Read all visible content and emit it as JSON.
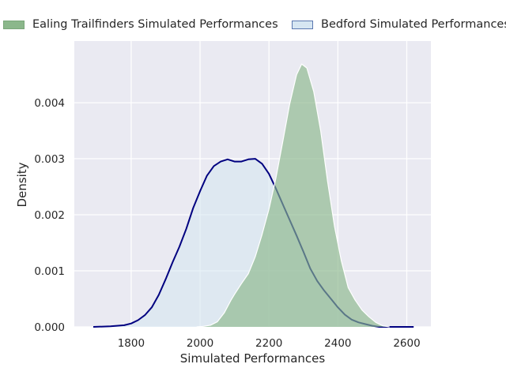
{
  "chart_data": {
    "type": "area",
    "title": "",
    "xlabel": "Simulated Performances",
    "ylabel": "Density",
    "xlim": [
      1635,
      2670
    ],
    "ylim": [
      0,
      0.0051
    ],
    "grid": true,
    "legend_position": "top",
    "x_ticks": [
      "1800",
      "2000",
      "2200",
      "2400",
      "2600"
    ],
    "y_ticks": [
      "0.000",
      "0.001",
      "0.002",
      "0.003",
      "0.004"
    ],
    "series": [
      {
        "name": "Ealing Trailfinders Simulated Performances",
        "fill": "#8bb78b",
        "fill_opacity": 0.65,
        "outline": "#ffffff",
        "points": [
          [
            1990,
            0.0
          ],
          [
            2010,
            1e-05
          ],
          [
            2030,
            3e-05
          ],
          [
            2050,
            9e-05
          ],
          [
            2070,
            0.00025
          ],
          [
            2090,
            0.00048
          ],
          [
            2100,
            0.00058
          ],
          [
            2120,
            0.00077
          ],
          [
            2140,
            0.00095
          ],
          [
            2160,
            0.00125
          ],
          [
            2180,
            0.00165
          ],
          [
            2200,
            0.0021
          ],
          [
            2220,
            0.00265
          ],
          [
            2240,
            0.0033
          ],
          [
            2260,
            0.00397
          ],
          [
            2280,
            0.0045
          ],
          [
            2295,
            0.00469
          ],
          [
            2310,
            0.00462
          ],
          [
            2330,
            0.0042
          ],
          [
            2350,
            0.0035
          ],
          [
            2370,
            0.0026
          ],
          [
            2390,
            0.0018
          ],
          [
            2410,
            0.00118
          ],
          [
            2430,
            0.0007
          ],
          [
            2450,
            0.00048
          ],
          [
            2470,
            0.0003
          ],
          [
            2490,
            0.00018
          ],
          [
            2510,
            8e-05
          ],
          [
            2530,
            2e-05
          ],
          [
            2550,
            0.0
          ]
        ]
      },
      {
        "name": "Bedford Simulated Performances",
        "fill": "#d3e5f1",
        "fill_opacity": 0.55,
        "outline": "#000080",
        "points": [
          [
            1690,
            0.0
          ],
          [
            1740,
            1e-05
          ],
          [
            1780,
            3e-05
          ],
          [
            1800,
            6e-05
          ],
          [
            1820,
            0.00012
          ],
          [
            1840,
            0.00021
          ],
          [
            1860,
            0.00035
          ],
          [
            1880,
            0.00057
          ],
          [
            1900,
            0.00085
          ],
          [
            1920,
            0.00115
          ],
          [
            1940,
            0.00143
          ],
          [
            1960,
            0.00175
          ],
          [
            1980,
            0.00212
          ],
          [
            2000,
            0.00242
          ],
          [
            2020,
            0.0027
          ],
          [
            2040,
            0.00287
          ],
          [
            2060,
            0.00295
          ],
          [
            2080,
            0.00299
          ],
          [
            2100,
            0.00295
          ],
          [
            2120,
            0.00295
          ],
          [
            2140,
            0.00299
          ],
          [
            2160,
            0.003
          ],
          [
            2180,
            0.00291
          ],
          [
            2200,
            0.00273
          ],
          [
            2220,
            0.00247
          ],
          [
            2240,
            0.00219
          ],
          [
            2260,
            0.00191
          ],
          [
            2280,
            0.00163
          ],
          [
            2300,
            0.00134
          ],
          [
            2320,
            0.00104
          ],
          [
            2340,
            0.00082
          ],
          [
            2360,
            0.00065
          ],
          [
            2380,
            0.0005
          ],
          [
            2400,
            0.00035
          ],
          [
            2420,
            0.00022
          ],
          [
            2440,
            0.00013
          ],
          [
            2460,
            8e-05
          ],
          [
            2480,
            5e-05
          ],
          [
            2500,
            2e-05
          ],
          [
            2520,
            0.0
          ],
          [
            2620,
            0.0
          ]
        ]
      }
    ]
  }
}
